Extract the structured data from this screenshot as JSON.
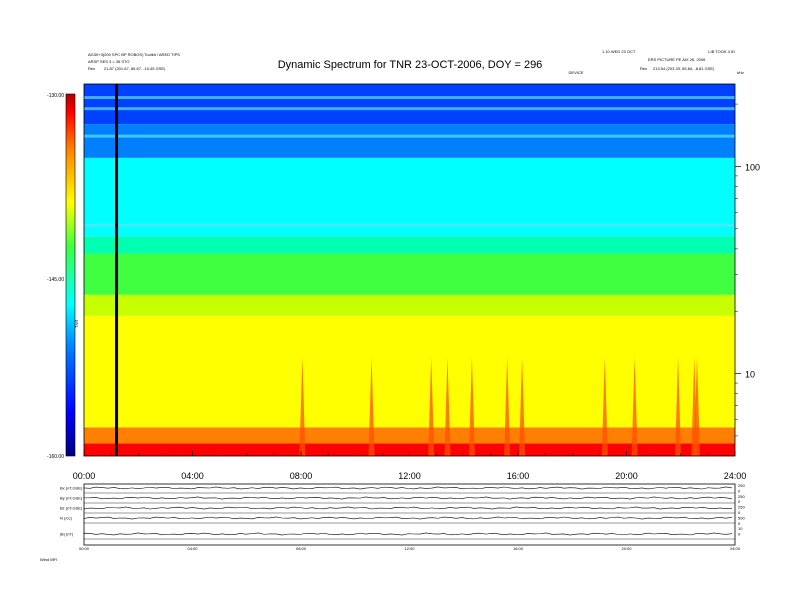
{
  "header": {
    "title": "Dynamic Spectrum for TNR 23-OCT-2006, DOY = 296",
    "left_line1": "AG30+3(200 SPC BP ROBOS) Toolkit / ARED TIPS",
    "left_line2": "ARSP SES 3 = 35 STO",
    "left_line3_label": "Rex",
    "left_line3_value": "21.87 (201.67, 85.67, -10.45 GSE)",
    "right_line1_a": "1.10 WED 23 OCT",
    "right_line1_b": "LIB TOOK 4 ID",
    "right_line2": "ERS PICTURE PE AIX 26, 2006",
    "right_line3_label": "Rex",
    "right_line3_value": "213.54 (203.33, 65.84, -8.81 GSE)",
    "center_small": "DEVICE",
    "unit_right": "kHz"
  },
  "colorbar": {
    "ticks": [
      "-130.00",
      "-145.00",
      "-160.00"
    ],
    "label": "TNR",
    "colors": [
      "#b00000",
      "#ff0000",
      "#ff8000",
      "#ffff00",
      "#80ff00",
      "#00ff80",
      "#00ffff",
      "#0080ff",
      "#0000ff",
      "#000080"
    ]
  },
  "chart_data": {
    "type": "heatmap",
    "title": "Dynamic Spectrum for TNR 23-OCT-2006, DOY = 296",
    "x_tick_labels": [
      "00:00",
      "04:00",
      "08:00",
      "12:00",
      "16:00",
      "20:00",
      "24:00"
    ],
    "x_range_hours": [
      0,
      24
    ],
    "y_scale": "log",
    "y_unit": "kHz",
    "y_tick_labels": [
      "100",
      "10"
    ],
    "y_range_khz": [
      4,
      250
    ],
    "colorbar_range": [
      -160,
      -130
    ],
    "colorbar_ticks": [
      -130,
      -145,
      -160
    ],
    "color_bands_by_frequency_khz": [
      {
        "from": 4.0,
        "to": 4.6,
        "color": "#ff0000"
      },
      {
        "from": 4.6,
        "to": 5.5,
        "color": "#ff8000"
      },
      {
        "from": 5.5,
        "to": 19,
        "color": "#ffff00"
      },
      {
        "from": 19,
        "to": 24,
        "color": "#c8ff00"
      },
      {
        "from": 24,
        "to": 38,
        "color": "#40ff40"
      },
      {
        "from": 38,
        "to": 46,
        "color": "#00ffb0"
      },
      {
        "from": 46,
        "to": 110,
        "color": "#00ffff"
      },
      {
        "from": 110,
        "to": 160,
        "color": "#0080ff"
      },
      {
        "from": 160,
        "to": 250,
        "color": "#0040ff"
      }
    ],
    "emission_spikes_hours": [
      8.05,
      10.6,
      12.8,
      13.4,
      14.3,
      15.6,
      16.15,
      19.2,
      20.3,
      21.9,
      22.5,
      22.6
    ],
    "data_gap_hours": 1.2,
    "grid": false
  },
  "lower_panel": {
    "row_labels": [
      "Bx (nT,GSE)",
      "By (nT,GSE)",
      "Bz (nT,GSE)",
      "N (/cc)",
      "|B| (nT)"
    ],
    "right_labels": [
      "250",
      "0",
      "250",
      "0",
      "250",
      "0",
      "500",
      "0",
      "10",
      "0"
    ],
    "x_tick_labels": [
      "00:00",
      "04:00",
      "08:00",
      "12:00",
      "16:00",
      "20:00",
      "24:00"
    ],
    "footer": "Wind    MFI"
  }
}
